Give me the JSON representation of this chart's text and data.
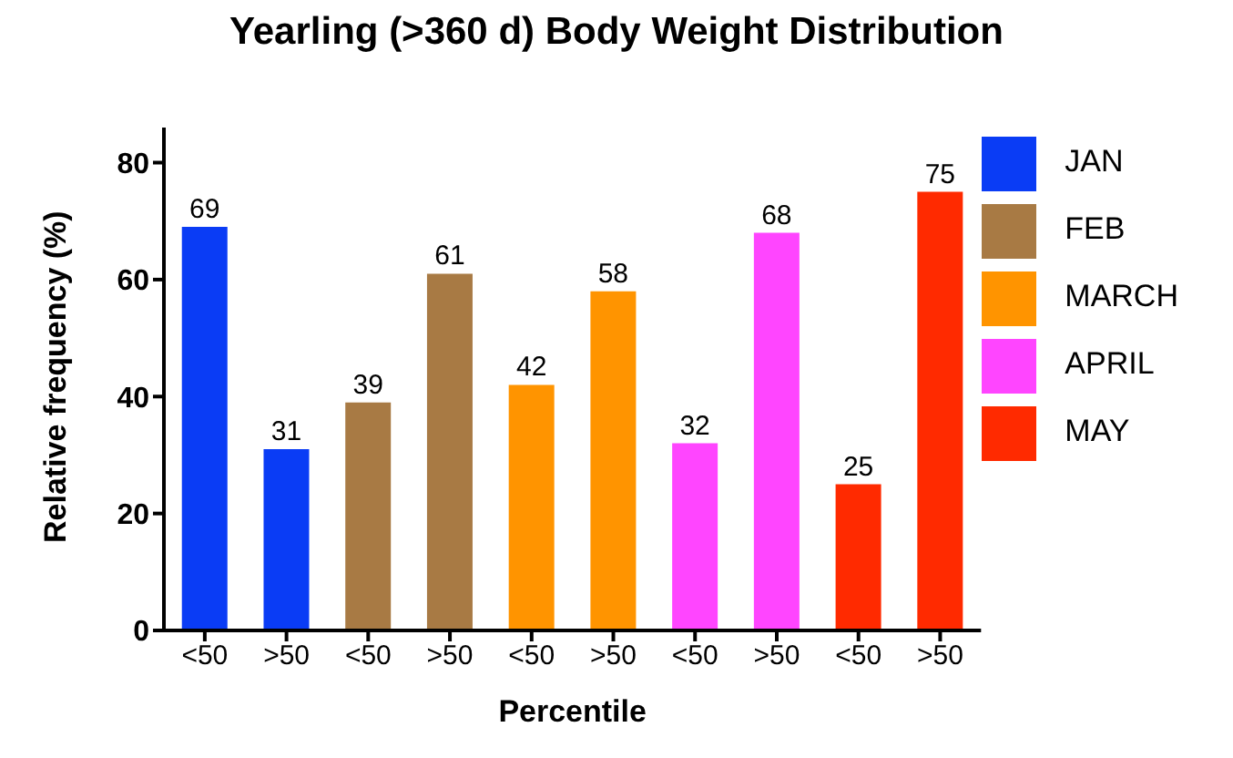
{
  "chart_data": {
    "type": "bar",
    "title": "Yearling (>360 d) Body Weight Distribution",
    "xlabel": "Percentile",
    "ylabel": "Relative frequency (%)",
    "categories": [
      "<50",
      ">50",
      "<50",
      ">50",
      "<50",
      ">50",
      "<50",
      ">50",
      "<50",
      ">50"
    ],
    "series": [
      {
        "name": "JAN",
        "color": "#0a3cf5",
        "values": [
          69,
          31,
          null,
          null,
          null,
          null,
          null,
          null,
          null,
          null
        ]
      },
      {
        "name": "FEB",
        "color": "#a87a44",
        "values": [
          null,
          null,
          39,
          61,
          null,
          null,
          null,
          null,
          null,
          null
        ]
      },
      {
        "name": "MARCH",
        "color": "#ff9400",
        "values": [
          null,
          null,
          null,
          null,
          42,
          58,
          null,
          null,
          null,
          null
        ]
      },
      {
        "name": "APRIL",
        "color": "#ff45ff",
        "values": [
          null,
          null,
          null,
          null,
          null,
          null,
          32,
          68,
          null,
          null
        ]
      },
      {
        "name": "MAY",
        "color": "#ff2a00",
        "values": [
          null,
          null,
          null,
          null,
          null,
          null,
          null,
          null,
          25,
          75
        ]
      }
    ],
    "ylim": [
      0,
      86
    ],
    "yticks": [
      0,
      20,
      40,
      60,
      80
    ],
    "grid": false,
    "legend": "right",
    "data_labels": true
  }
}
